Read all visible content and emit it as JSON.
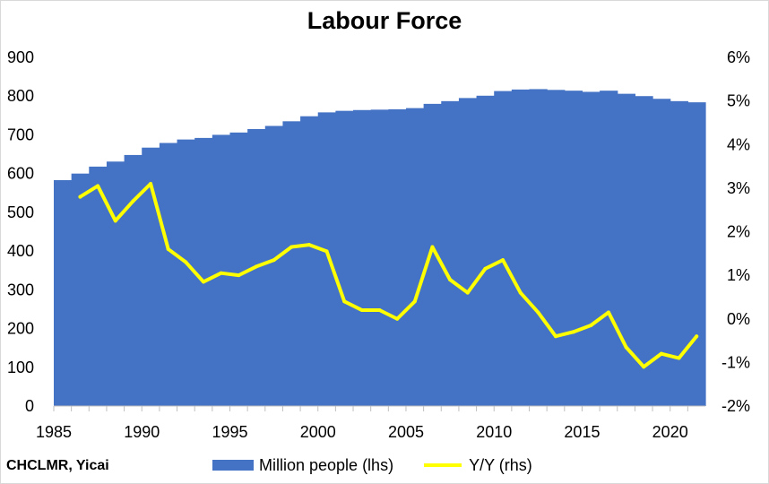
{
  "chart_data": {
    "type": "bar",
    "title": "Labour Force",
    "source": "CHCLMR, Yicai",
    "x": [
      1985,
      1986,
      1987,
      1988,
      1989,
      1990,
      1991,
      1992,
      1993,
      1994,
      1995,
      1996,
      1997,
      1998,
      1999,
      2000,
      2001,
      2002,
      2003,
      2004,
      2005,
      2006,
      2007,
      2008,
      2009,
      2010,
      2011,
      2012,
      2013,
      2014,
      2015,
      2016,
      2017,
      2018,
      2019,
      2020,
      2021
    ],
    "x_tick_labels": [
      "1985",
      "1990",
      "1995",
      "2000",
      "2005",
      "2010",
      "2015",
      "2020"
    ],
    "series": [
      {
        "name": "Million people (lhs)",
        "type": "bar",
        "axis": "left",
        "color": "#4472c4",
        "values": [
          583,
          600,
          618,
          631,
          648,
          667,
          679,
          688,
          692,
          700,
          706,
          715,
          723,
          735,
          748,
          758,
          762,
          764,
          765,
          766,
          769,
          780,
          787,
          795,
          801,
          813,
          817,
          818,
          816,
          814,
          811,
          814,
          806,
          800,
          793,
          787,
          784
        ]
      },
      {
        "name": "Y/Y (rhs)",
        "type": "line",
        "axis": "right",
        "color": "#ffff00",
        "x": [
          1986,
          1987,
          1988,
          1989,
          1990,
          1991,
          1992,
          1993,
          1994,
          1995,
          1996,
          1997,
          1998,
          1999,
          2000,
          2001,
          2002,
          2003,
          2004,
          2005,
          2006,
          2007,
          2008,
          2009,
          2010,
          2011,
          2012,
          2013,
          2014,
          2015,
          2016,
          2017,
          2018,
          2019,
          2020,
          2021
        ],
        "values": [
          2.8,
          3.05,
          2.25,
          2.7,
          3.1,
          1.6,
          1.3,
          0.85,
          1.05,
          1.0,
          1.2,
          1.35,
          1.65,
          1.7,
          1.55,
          0.4,
          0.2,
          0.2,
          0.0,
          0.4,
          1.65,
          0.9,
          0.6,
          1.15,
          1.35,
          0.6,
          0.15,
          -0.4,
          -0.3,
          -0.15,
          0.15,
          -0.65,
          -1.1,
          -0.8,
          -0.9,
          -0.4
        ]
      }
    ],
    "y_left": {
      "min": 0,
      "max": 900,
      "step": 100,
      "tick_labels": [
        "0",
        "100",
        "200",
        "300",
        "400",
        "500",
        "600",
        "700",
        "800",
        "900"
      ]
    },
    "y_right": {
      "min": -2,
      "max": 6,
      "step": 1,
      "tick_labels": [
        "-2%",
        "-1%",
        "0%",
        "1%",
        "2%",
        "3%",
        "4%",
        "5%",
        "6%"
      ]
    },
    "grid": false,
    "legend_position": "bottom"
  }
}
